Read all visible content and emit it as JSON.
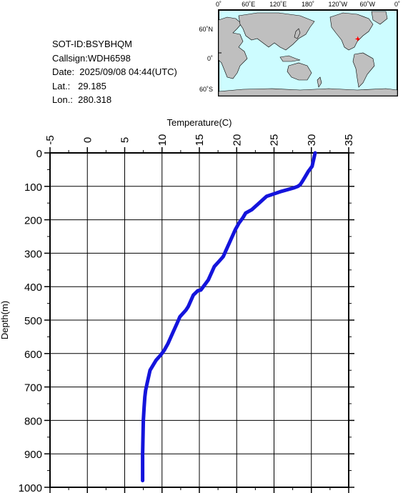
{
  "info": {
    "sot_id": "SOT-ID:BSYBHQM",
    "callsign": "Callsign:WDH6598",
    "date": "Date:  2025/09/08 04:44(UTC)",
    "lat": "Lat.:   29.185",
    "lon": "Lon.:  280.318"
  },
  "map": {
    "lon_labels": [
      "0˚",
      "60˚E",
      "120˚E",
      "180˚",
      "120˚W",
      "60˚W",
      "0˚"
    ],
    "lat_labels": [
      "60˚N",
      "0˚",
      "60˚S"
    ],
    "ocean_color": "#cdfcff",
    "land_color": "#bfbfbf",
    "marker_color": "#ff0000",
    "marker": {
      "lat": 29.185,
      "lon": 280.318
    }
  },
  "chart_data": {
    "type": "line",
    "xlabel": "Temperature(C)",
    "ylabel": "Depth(m)",
    "xlim": [
      -5,
      35
    ],
    "ylim": [
      0,
      1000
    ],
    "y_inverted": true,
    "x_axis_position": "top",
    "grid": true,
    "x_ticks": [
      -5,
      0,
      5,
      10,
      15,
      20,
      25,
      30,
      35
    ],
    "y_ticks": [
      0,
      100,
      200,
      300,
      400,
      500,
      600,
      700,
      800,
      900,
      1000
    ],
    "line_color": "#1414dc",
    "series": [
      {
        "x": [
          30.5,
          30.3,
          30.1,
          29.6,
          29.2,
          28.8,
          28.5,
          28.2,
          27.6,
          26.0,
          24.0,
          23.0,
          22.0,
          21.2,
          20.8,
          20.3,
          19.8,
          19.4,
          19.0,
          18.6,
          18.2,
          17.6,
          17.0,
          16.6,
          16.2,
          15.7,
          15.2,
          14.8,
          14.2,
          13.9,
          13.6,
          13.5,
          13.2,
          12.4,
          12.0,
          11.6,
          11.2,
          10.8,
          10.3,
          9.8,
          9.2,
          8.8,
          8.4,
          8.2,
          8.0,
          7.8,
          7.7,
          7.6,
          7.5,
          7.45,
          7.4,
          7.4
        ],
        "y": [
          0,
          20,
          40,
          55,
          70,
          85,
          95,
          100,
          105,
          115,
          130,
          150,
          170,
          180,
          195,
          210,
          230,
          250,
          270,
          290,
          310,
          325,
          340,
          360,
          380,
          395,
          410,
          412,
          425,
          440,
          455,
          460,
          470,
          490,
          510,
          530,
          550,
          570,
          590,
          605,
          620,
          635,
          650,
          670,
          690,
          710,
          730,
          760,
          800,
          850,
          900,
          980
        ]
      }
    ]
  }
}
